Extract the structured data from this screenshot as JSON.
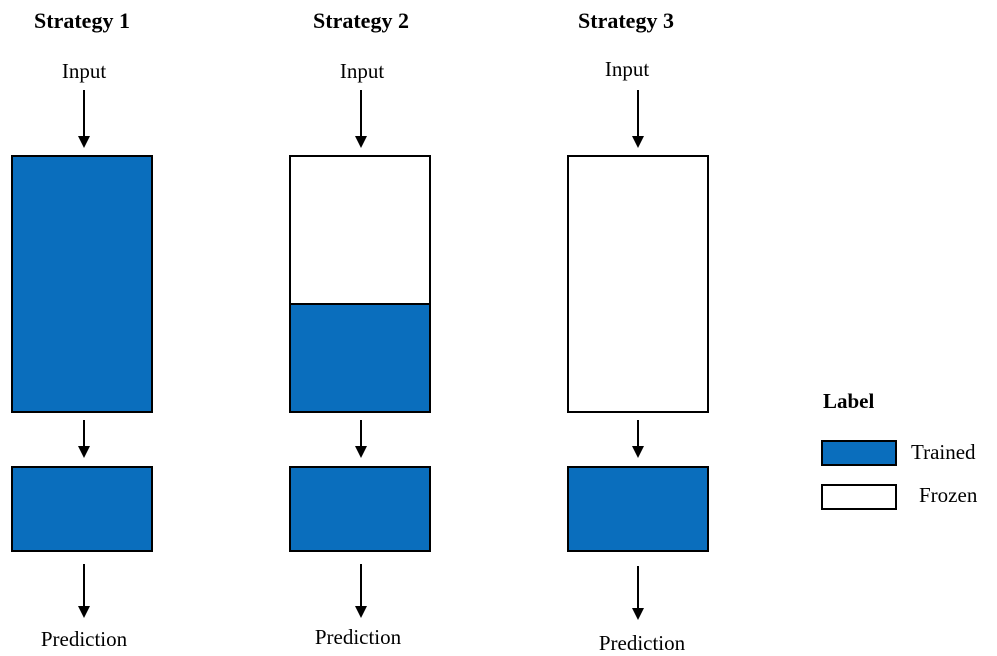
{
  "colors": {
    "trained": "#0a6ebd",
    "frozen": "#ffffff",
    "outline": "#000000"
  },
  "strategies": [
    {
      "title": "Strategy 1",
      "input": "Input",
      "output": "Prediction"
    },
    {
      "title": "Strategy 2",
      "input": "Input",
      "output": "Prediction"
    },
    {
      "title": "Strategy 3",
      "input": "Input",
      "output": "Prediction"
    }
  ],
  "legend": {
    "title": "Label",
    "items": [
      {
        "label": "Trained",
        "swatch": "trained"
      },
      {
        "label": "Frozen",
        "swatch": "frozen"
      }
    ]
  }
}
